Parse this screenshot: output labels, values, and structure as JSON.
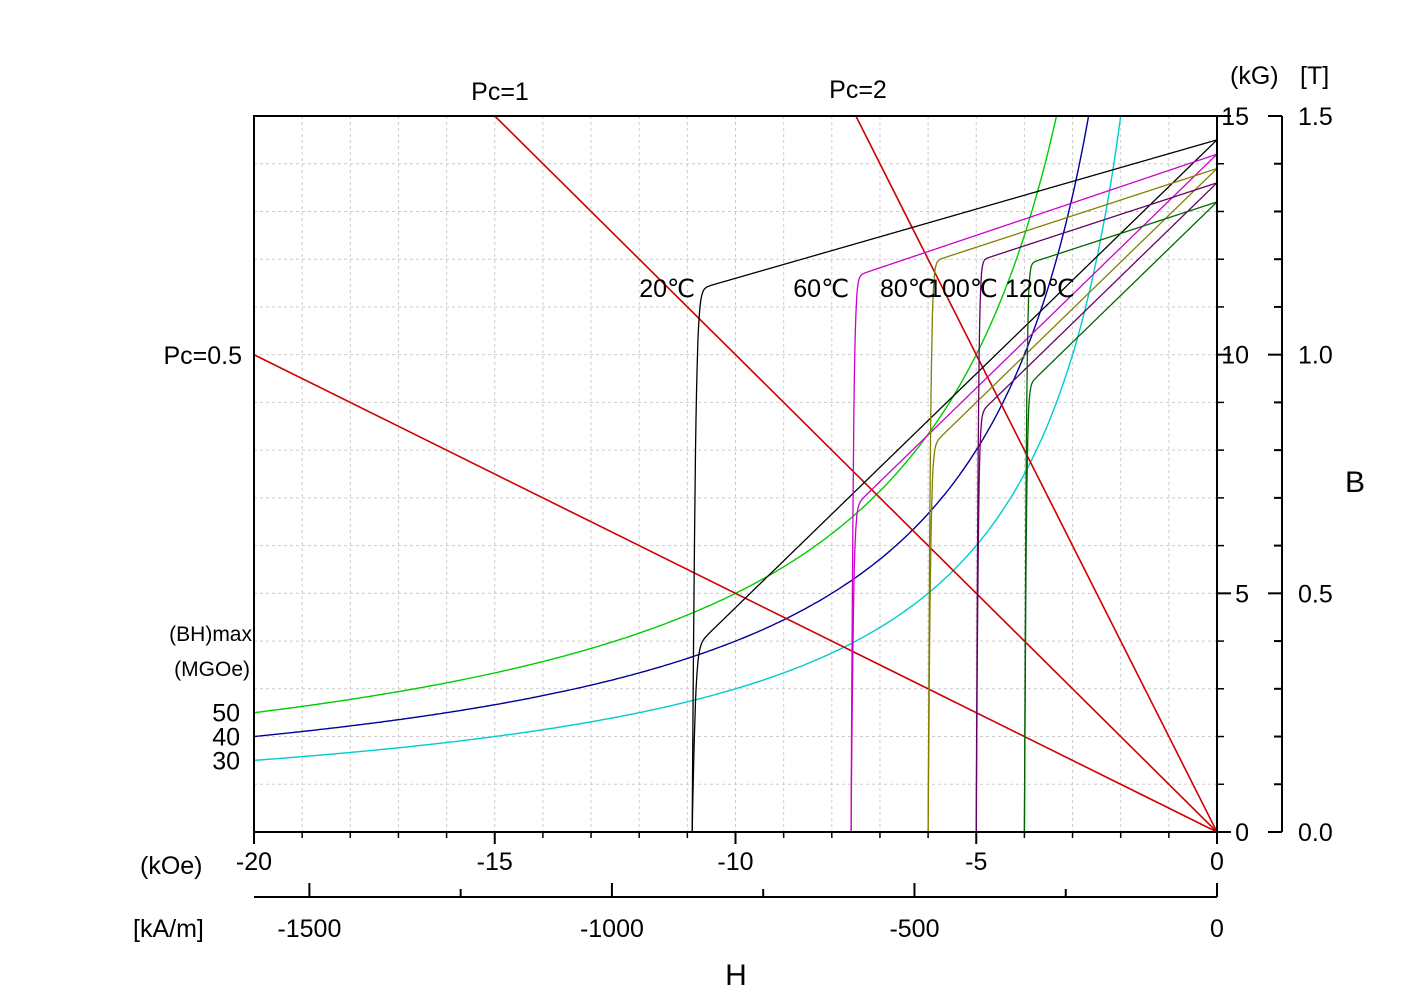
{
  "chart_data": {
    "type": "line",
    "colors": {
      "20": "#000000",
      "60": "#cc00cc",
      "80": "#808000",
      "100": "#660066",
      "120": "#006600",
      "bh50": "#00cc00",
      "bh40": "#000099",
      "bh30": "#00cccc",
      "pc": "#cc0000",
      "grid": "#cccccc",
      "axis": "#000000"
    },
    "x_axis": {
      "label": "H",
      "unit_koe": "(kOe)",
      "unit_kam": "[kA/m]",
      "range_koe": [
        -20,
        0
      ],
      "ticks_koe": [
        {
          "v": -20,
          "label": "-20"
        },
        {
          "v": -15,
          "label": "-15"
        },
        {
          "v": -10,
          "label": "-10"
        },
        {
          "v": -5,
          "label": "-5"
        },
        {
          "v": 0,
          "label": "0"
        }
      ],
      "ticks_kam": [
        {
          "v": -1500,
          "label": "-1500"
        },
        {
          "v": -1000,
          "label": "-1000"
        },
        {
          "v": -500,
          "label": "-500"
        },
        {
          "v": 0,
          "label": "0"
        }
      ]
    },
    "y_axis": {
      "label": "B",
      "unit_kg": "(kG)",
      "unit_t": "[T]",
      "range_kg": [
        0,
        15
      ],
      "ticks_kg": [
        {
          "v": 0,
          "label": "0"
        },
        {
          "v": 5,
          "label": "5"
        },
        {
          "v": 10,
          "label": "10"
        },
        {
          "v": 15,
          "label": "15"
        }
      ],
      "ticks_t": [
        {
          "v": 0,
          "label": "0.0"
        },
        {
          "v": 0.5,
          "label": "0.5"
        },
        {
          "v": 1.0,
          "label": "1.0"
        },
        {
          "v": 1.5,
          "label": "1.5"
        }
      ]
    },
    "grid": true,
    "demag_curves": [
      {
        "name": "20℃",
        "key": "20",
        "hcj": -10.9,
        "br": 14.5,
        "slope": 0.29,
        "sharp": 0.08,
        "label_x": -12.0,
        "label_y": 11.4
      },
      {
        "name": "60℃",
        "key": "60",
        "hcj": -7.6,
        "br": 14.2,
        "slope": 0.34,
        "sharp": 0.06,
        "label_x": -8.8,
        "label_y": 11.4
      },
      {
        "name": "80℃",
        "key": "80",
        "hcj": -6.0,
        "br": 13.9,
        "slope": 0.33,
        "sharp": 0.06,
        "label_x": -7.0,
        "label_y": 11.4
      },
      {
        "name": "100℃",
        "key": "100",
        "hcj": -5.0,
        "br": 13.6,
        "slope": 0.33,
        "sharp": 0.05,
        "label_x": -6.0,
        "label_y": 11.4
      },
      {
        "name": "120℃",
        "key": "120",
        "hcj": -4.0,
        "br": 13.2,
        "slope": 0.33,
        "sharp": 0.05,
        "label_x": -4.4,
        "label_y": 11.4
      }
    ],
    "bhmax_curves": [
      {
        "value": 50,
        "label": "50",
        "key": "bh50"
      },
      {
        "value": 40,
        "label": "40",
        "key": "bh40"
      },
      {
        "value": 30,
        "label": "30",
        "key": "bh30"
      }
    ],
    "bhmax_title": [
      "(BH)max",
      "(MGOe)"
    ],
    "load_lines": [
      {
        "name": "Pc=0.5",
        "pc": 0.5
      },
      {
        "name": "Pc=1",
        "pc": 1
      },
      {
        "name": "Pc=2",
        "pc": 2
      }
    ]
  }
}
